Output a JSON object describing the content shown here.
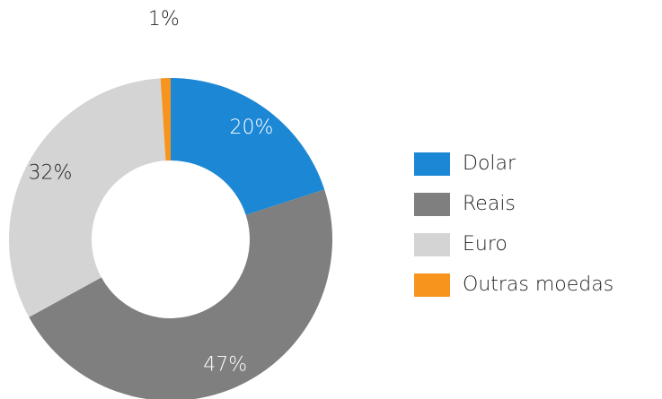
{
  "chart_data": {
    "type": "donut",
    "categories": [
      "Dolar",
      "Reais",
      "Euro",
      "Outras moedas"
    ],
    "values": [
      20,
      47,
      32,
      1
    ],
    "value_labels": [
      "20%",
      "47%",
      "32%",
      "1%"
    ],
    "colors": [
      "#1c87d4",
      "#7f7f7f",
      "#d4d4d4",
      "#f7941d"
    ],
    "legend": "right"
  }
}
